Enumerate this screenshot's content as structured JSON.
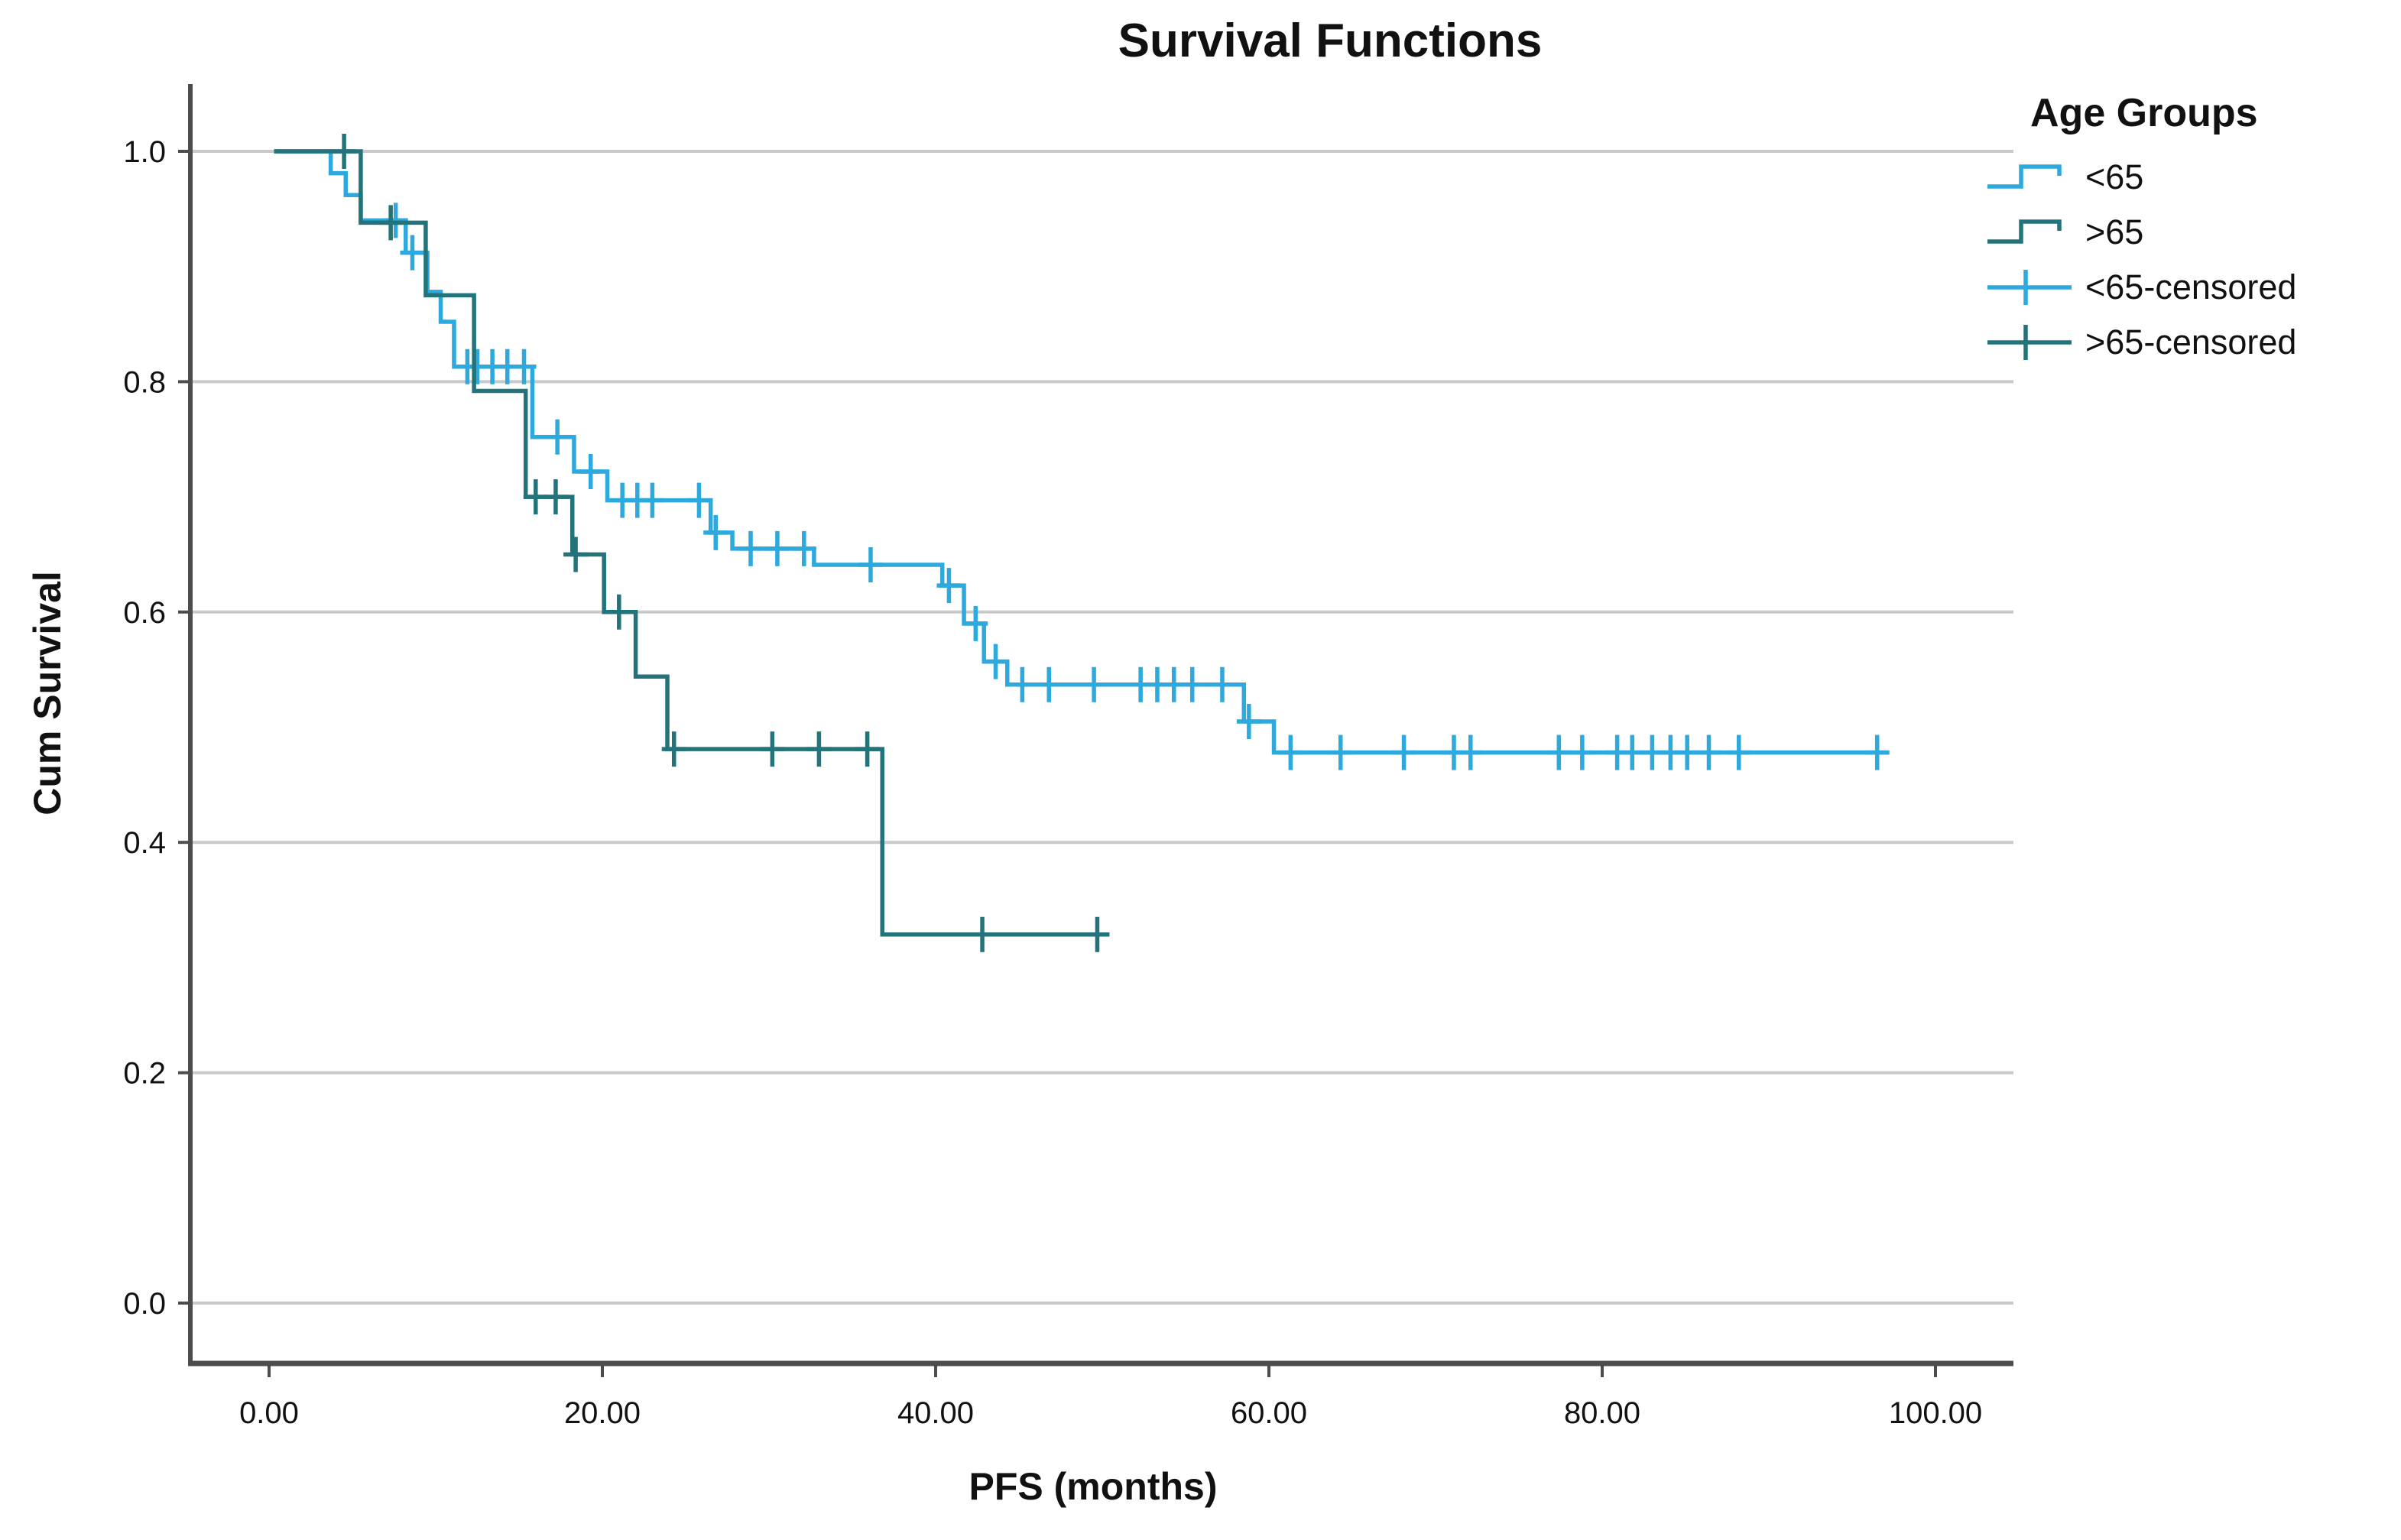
{
  "chart_data": {
    "type": "line",
    "subtype": "kaplan-meier-step",
    "title": "Survival Functions",
    "xlabel": "PFS (months)",
    "ylabel": "Cum Survival",
    "xlim": [
      -6,
      106
    ],
    "ylim": [
      -0.05,
      1.05
    ],
    "grid": "horizontal",
    "x_axis": {
      "tick_values": [
        0,
        20,
        40,
        60,
        80,
        100
      ],
      "tick_labels": [
        "0.00",
        "20.00",
        "40.00",
        "60.00",
        "80.00",
        "100.00"
      ]
    },
    "y_axis": {
      "tick_values": [
        0.0,
        0.2,
        0.4,
        0.6,
        0.8,
        1.0
      ],
      "tick_labels": [
        "0.0",
        "0.2",
        "0.4",
        "0.6",
        "0.8",
        "1.0"
      ]
    },
    "legend": {
      "title": "Age Groups",
      "position": "top-right",
      "entries": [
        {
          "label": "<65",
          "type": "line",
          "series": "under65"
        },
        {
          "label": ">65",
          "type": "line",
          "series": "over65"
        },
        {
          "label": "<65-censored",
          "type": "censor",
          "series": "under65"
        },
        {
          "label": ">65-censored",
          "type": "censor",
          "series": "over65"
        }
      ]
    },
    "series": [
      {
        "name": "<65",
        "key": "under65",
        "color": "#2da9dd",
        "start_time": 0.3,
        "end_time": 97.2,
        "steps": [
          [
            3.7,
            0.981
          ],
          [
            4.6,
            0.962
          ],
          [
            5.5,
            0.94
          ],
          [
            8.2,
            0.912
          ],
          [
            9.5,
            0.878
          ],
          [
            10.3,
            0.852
          ],
          [
            11.1,
            0.813
          ],
          [
            15.8,
            0.752
          ],
          [
            18.3,
            0.722
          ],
          [
            20.3,
            0.697
          ],
          [
            26.5,
            0.669
          ],
          [
            27.8,
            0.655
          ],
          [
            32.7,
            0.641
          ],
          [
            40.4,
            0.623
          ],
          [
            41.7,
            0.59
          ],
          [
            42.9,
            0.557
          ],
          [
            44.3,
            0.537
          ],
          [
            58.5,
            0.505
          ],
          [
            60.3,
            0.478
          ]
        ],
        "censored": [
          [
            7.6,
            0.94
          ],
          [
            8.6,
            0.912
          ],
          [
            11.9,
            0.813
          ],
          [
            12.5,
            0.813
          ],
          [
            13.4,
            0.813
          ],
          [
            14.3,
            0.813
          ],
          [
            15.3,
            0.813
          ],
          [
            17.3,
            0.752
          ],
          [
            19.3,
            0.722
          ],
          [
            21.2,
            0.697
          ],
          [
            22.1,
            0.697
          ],
          [
            23.0,
            0.697
          ],
          [
            25.8,
            0.697
          ],
          [
            26.8,
            0.669
          ],
          [
            28.9,
            0.655
          ],
          [
            30.5,
            0.655
          ],
          [
            32.1,
            0.655
          ],
          [
            36.1,
            0.641
          ],
          [
            40.8,
            0.623
          ],
          [
            42.4,
            0.59
          ],
          [
            43.6,
            0.557
          ],
          [
            45.2,
            0.537
          ],
          [
            46.8,
            0.537
          ],
          [
            49.5,
            0.537
          ],
          [
            52.3,
            0.537
          ],
          [
            53.3,
            0.537
          ],
          [
            54.3,
            0.537
          ],
          [
            55.4,
            0.537
          ],
          [
            57.2,
            0.537
          ],
          [
            58.8,
            0.505
          ],
          [
            61.3,
            0.478
          ],
          [
            64.3,
            0.478
          ],
          [
            68.1,
            0.478
          ],
          [
            71.1,
            0.478
          ],
          [
            72.1,
            0.478
          ],
          [
            77.4,
            0.478
          ],
          [
            78.8,
            0.478
          ],
          [
            80.9,
            0.478
          ],
          [
            81.8,
            0.478
          ],
          [
            83.0,
            0.478
          ],
          [
            84.1,
            0.478
          ],
          [
            85.1,
            0.478
          ],
          [
            86.4,
            0.478
          ],
          [
            88.2,
            0.478
          ],
          [
            96.5,
            0.478
          ]
        ]
      },
      {
        "name": ">65",
        "key": "over65",
        "color": "#22737a",
        "start_time": 0.3,
        "end_time": 50.1,
        "steps": [
          [
            5.5,
            0.938
          ],
          [
            9.4,
            0.875
          ],
          [
            12.3,
            0.792
          ],
          [
            15.4,
            0.7
          ],
          [
            18.2,
            0.65
          ],
          [
            20.1,
            0.6
          ],
          [
            22.0,
            0.544
          ],
          [
            23.9,
            0.481
          ],
          [
            36.8,
            0.32
          ]
        ],
        "censored": [
          [
            4.5,
            1.0
          ],
          [
            7.3,
            0.938
          ],
          [
            16.0,
            0.7
          ],
          [
            17.2,
            0.7
          ],
          [
            18.4,
            0.65
          ],
          [
            21.0,
            0.6
          ],
          [
            24.3,
            0.481
          ],
          [
            30.2,
            0.481
          ],
          [
            33.0,
            0.481
          ],
          [
            35.9,
            0.481
          ],
          [
            42.8,
            0.32
          ],
          [
            49.7,
            0.32
          ]
        ]
      }
    ],
    "colors": {
      "grid": "#c9c9c9",
      "axis": "#4d4d4d",
      "text": "#111111",
      "background": "#ffffff"
    }
  }
}
